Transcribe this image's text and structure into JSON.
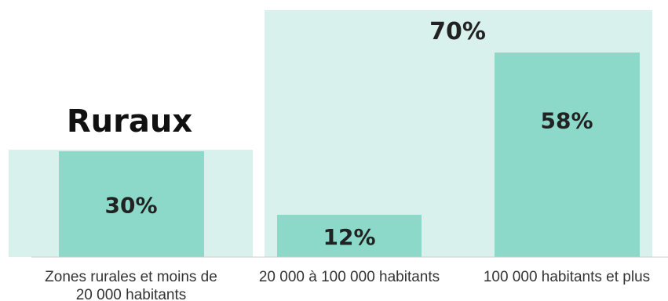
{
  "chart_data": {
    "type": "bar",
    "categories": [
      [
        "Zones rurales et moins de",
        "20 000 habitants"
      ],
      [
        "20 000 à 100 000 habitants"
      ],
      [
        "100 000 habitants et plus"
      ]
    ],
    "values": [
      30,
      12,
      58
    ],
    "value_labels": [
      "30%",
      "12%",
      "58%"
    ],
    "groups": [
      {
        "label": "Ruraux",
        "categories": [
          0
        ]
      },
      {
        "total_label": "70%",
        "categories": [
          1,
          2
        ]
      }
    ],
    "ylim": [
      0,
      58
    ],
    "colors": {
      "bar": "#8cd9c9",
      "group_bg": "#d8f1ec",
      "baseline": "#cccccc"
    }
  }
}
